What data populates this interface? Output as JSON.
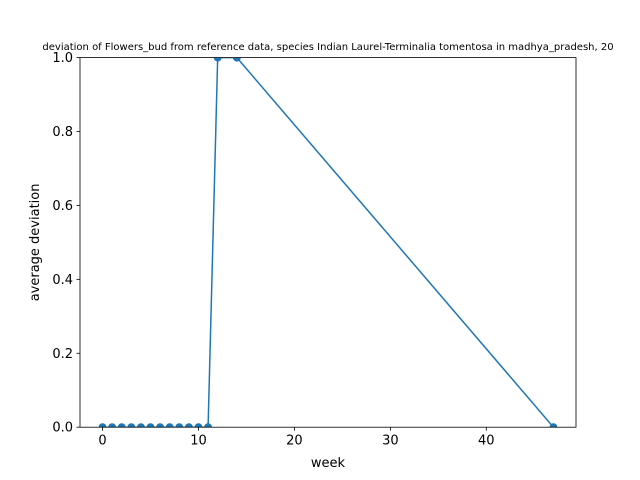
{
  "chart_data": {
    "type": "line",
    "title": "deviation of Flowers_bud from reference data, species Indian Laurel-Terminalia tomentosa in madhya_pradesh, 20",
    "xlabel": "week",
    "ylabel": "average deviation",
    "xlim": [
      -2.35,
      49.35
    ],
    "ylim": [
      0,
      1
    ],
    "xticks": [
      0,
      10,
      20,
      30,
      40
    ],
    "yticks": [
      0.0,
      0.2,
      0.4,
      0.6,
      0.8,
      1.0
    ],
    "xtick_labels": [
      "0",
      "10",
      "20",
      "30",
      "40"
    ],
    "ytick_labels": [
      "0.0",
      "0.2",
      "0.4",
      "0.6",
      "0.8",
      "1.0"
    ],
    "grid": false,
    "legend": null,
    "series": [
      {
        "color": "#1f77b4",
        "marker": "circle",
        "x": [
          0,
          1,
          2,
          3,
          4,
          5,
          6,
          7,
          8,
          9,
          10,
          11,
          12,
          14,
          47
        ],
        "y": [
          0,
          0,
          0,
          0,
          0,
          0,
          0,
          0,
          0,
          0,
          0,
          0,
          1,
          1,
          0
        ]
      }
    ]
  }
}
